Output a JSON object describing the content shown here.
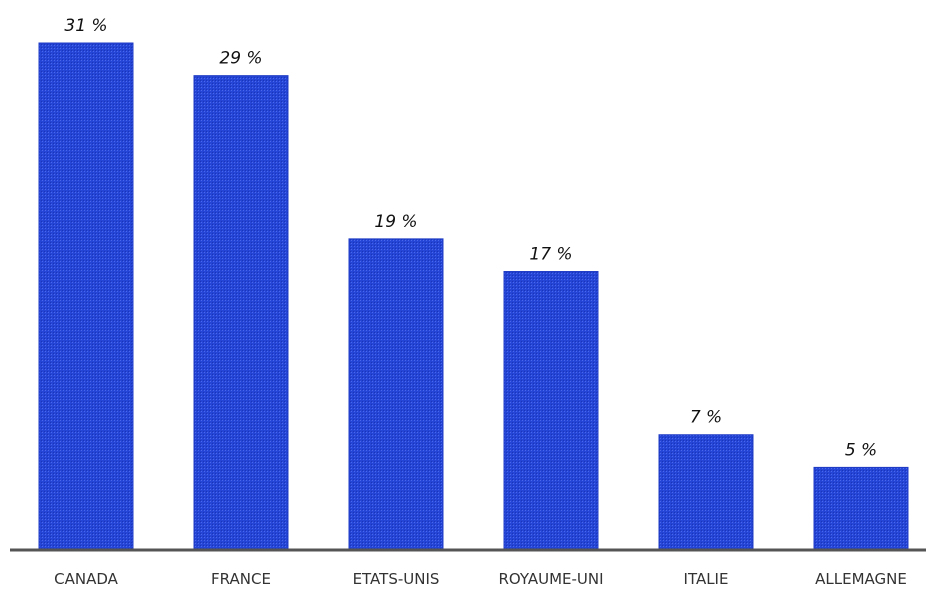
{
  "chart_data": {
    "type": "bar",
    "categories": [
      "CANADA",
      "FRANCE",
      "ETATS-UNIS",
      "ROYAUME-UNI",
      "ITALIE",
      "ALLEMAGNE"
    ],
    "values": [
      31,
      29,
      19,
      17,
      7,
      5
    ],
    "value_labels": [
      "31 %",
      "29 %",
      "19 %",
      "17 %",
      "7 %",
      "5 %"
    ],
    "title": "",
    "xlabel": "",
    "ylabel": "",
    "ylim": [
      0,
      31
    ],
    "grid": false,
    "legend": "none",
    "colors": {
      "bar": "#2545d6",
      "axis": "#555555"
    }
  }
}
